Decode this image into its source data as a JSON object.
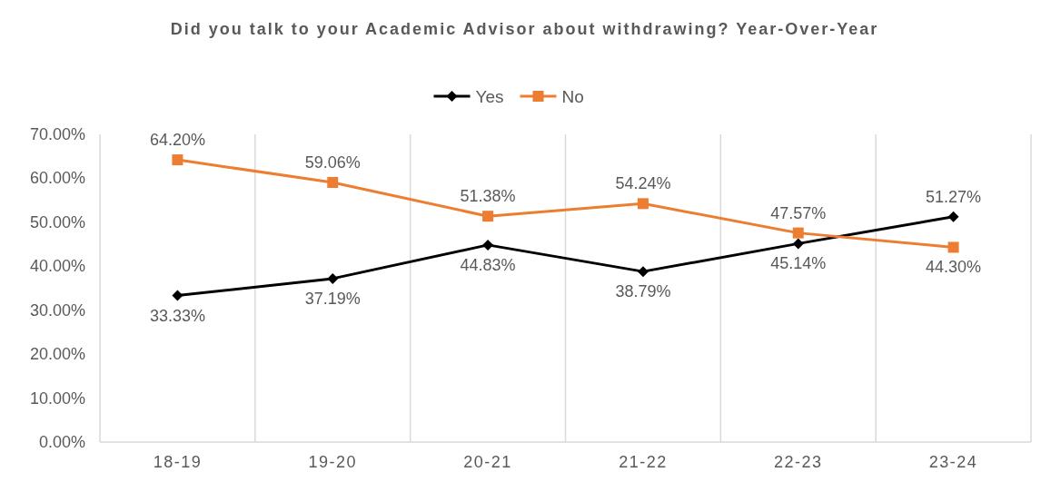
{
  "chart_data": {
    "type": "line",
    "title": "Did you talk to your Academic Advisor about withdrawing? Year-Over-Year",
    "categories": [
      "18-19",
      "19-20",
      "20-21",
      "21-22",
      "22-23",
      "23-24"
    ],
    "series": [
      {
        "name": "Yes",
        "color": "#000000",
        "marker": "diamond",
        "values": [
          33.33,
          37.19,
          44.83,
          38.79,
          45.14,
          51.27
        ],
        "value_labels": [
          "33.33%",
          "37.19%",
          "44.83%",
          "38.79%",
          "45.14%",
          "51.27%"
        ]
      },
      {
        "name": "No",
        "color": "#ed7d31",
        "marker": "square",
        "values": [
          64.2,
          59.06,
          51.38,
          54.24,
          47.57,
          44.3
        ],
        "value_labels": [
          "64.20%",
          "59.06%",
          "51.38%",
          "54.24%",
          "47.57%",
          "44.30%"
        ]
      }
    ],
    "ylim": [
      0,
      70
    ],
    "yticks": [
      {
        "value": 0,
        "label": "0.00%"
      },
      {
        "value": 10,
        "label": "10.00%"
      },
      {
        "value": 20,
        "label": "20.00%"
      },
      {
        "value": 30,
        "label": "30.00%"
      },
      {
        "value": 40,
        "label": "40.00%"
      },
      {
        "value": 50,
        "label": "50.00%"
      },
      {
        "value": 60,
        "label": "60.00%"
      },
      {
        "value": 70,
        "label": "70.00%"
      }
    ],
    "grid": "x",
    "legend": "top",
    "line_style": "solid"
  }
}
